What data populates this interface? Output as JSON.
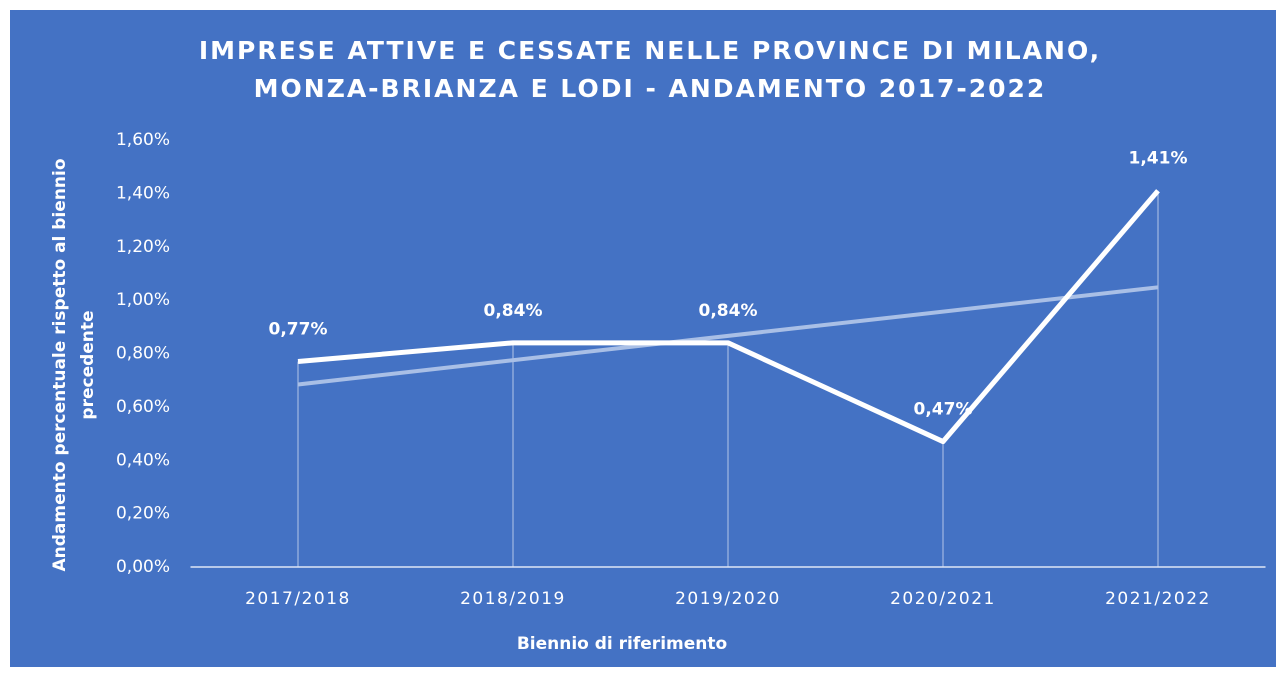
{
  "chart_data": {
    "type": "line",
    "title": [
      "IMPRESE ATTIVE E CESSATE NELLE PROVINCE DI MILANO,",
      "MONZA-BRIANZA E LODI - ANDAMENTO 2017-2022"
    ],
    "x_label": "Biennio di riferimento",
    "y_label": [
      "Andamento percentuale rispetto al biennio",
      "precedente"
    ],
    "categories": [
      "2017/2018",
      "2018/2019",
      "2019/2020",
      "2020/2021",
      "2021/2022"
    ],
    "values": [
      0.77,
      0.84,
      0.84,
      0.47,
      1.41
    ],
    "value_labels": [
      "0,77%",
      "0,84%",
      "0,84%",
      "0,47%",
      "1,41%"
    ],
    "color": "#ffffff",
    "trendline": "linear",
    "ylim": [
      0,
      1.6
    ],
    "yticks": [
      {
        "value": 0,
        "label": "0,00%"
      },
      {
        "value": 0.2,
        "label": "0,20%"
      },
      {
        "value": 0.4,
        "label": "0,40%"
      },
      {
        "value": 0.6,
        "label": "0,60%"
      },
      {
        "value": 0.8,
        "label": "0,80%"
      },
      {
        "value": 1.0,
        "label": "1,00%"
      },
      {
        "value": 1.2,
        "label": "1,20%"
      },
      {
        "value": 1.4,
        "label": "1,40%"
      },
      {
        "value": 1.6,
        "label": "1,60%"
      }
    ]
  }
}
